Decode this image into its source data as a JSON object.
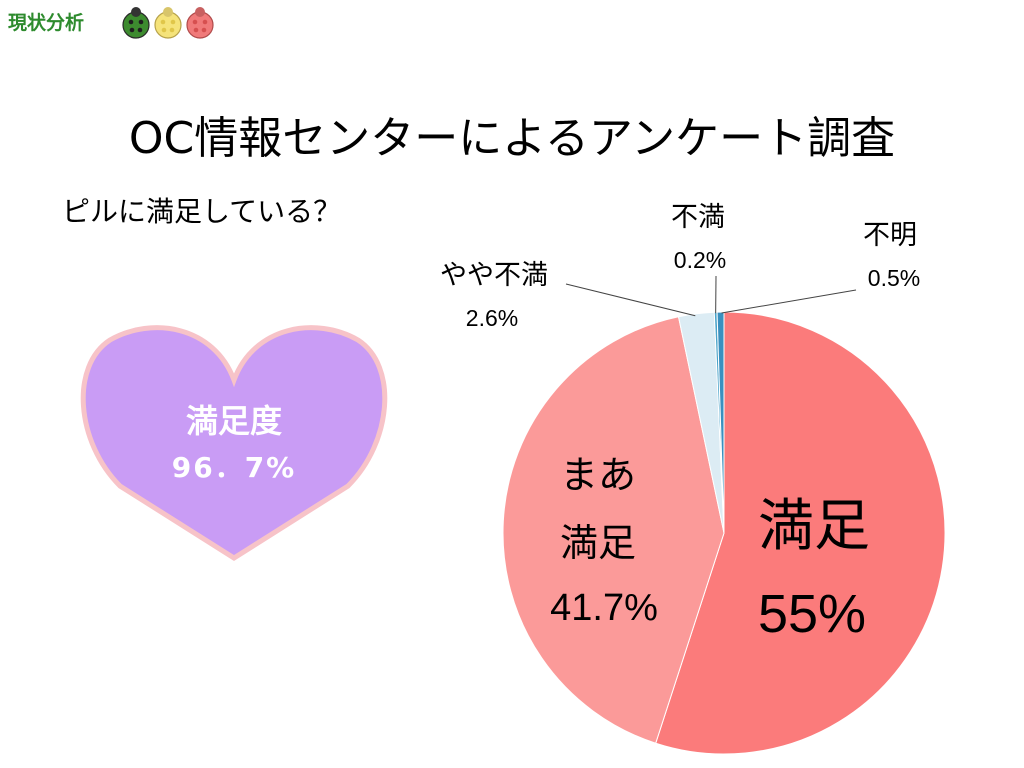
{
  "header": {
    "section_label": "現状分析",
    "bug_colors": [
      "#3d8b2f",
      "#f5e37a",
      "#f07a7a"
    ]
  },
  "slide": {
    "title": "OC情報センターによるアンケート調査",
    "question": "ピルに満足している？"
  },
  "heart": {
    "label": "満足度",
    "value": "96．7%",
    "fill": "#c99cf5",
    "border": "#f7c3c8"
  },
  "chart_data": {
    "type": "pie",
    "start_angle_deg": 0,
    "direction": "clockwise",
    "slices": [
      {
        "label_lines": [
          "満足"
        ],
        "value": 55,
        "percent_label": "55%",
        "color": "#fb7b7b",
        "label_style": "inside-large"
      },
      {
        "label_lines": [
          "まあ",
          "満足"
        ],
        "value": 41.7,
        "percent_label": "41.7%",
        "color": "#fb9a99",
        "label_style": "inside"
      },
      {
        "label_lines": [
          "やや不満"
        ],
        "value": 2.6,
        "percent_label": "2.6%",
        "color": "#dcecf4",
        "label_style": "callout-left"
      },
      {
        "label_lines": [
          "不満"
        ],
        "value": 0.2,
        "percent_label": "0.2%",
        "color": "#4aa3c9",
        "label_style": "callout-top"
      },
      {
        "label_lines": [
          "不明"
        ],
        "value": 0.5,
        "percent_label": "0.5%",
        "color": "#3a90bf",
        "label_style": "callout-right"
      }
    ]
  }
}
